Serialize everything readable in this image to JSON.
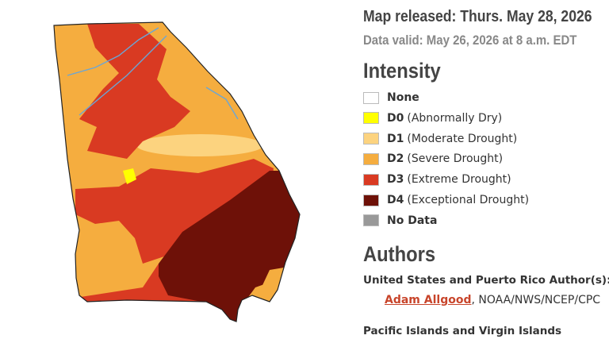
{
  "header": {
    "released": "Map released: Thurs. May 28, 2026",
    "valid": "Data valid: May 26, 2026 at 8 a.m. EDT"
  },
  "legend": {
    "title": "Intensity",
    "items": [
      {
        "code": "None",
        "color": "#ffffff"
      },
      {
        "code": "D0",
        "label": "(Abnormally Dry)",
        "color": "#ffff00"
      },
      {
        "code": "D1",
        "label": "(Moderate Drought)",
        "color": "#fcd37f"
      },
      {
        "code": "D2",
        "label": "(Severe Drought)",
        "color": "#f5ad3f"
      },
      {
        "code": "D3",
        "label": "(Extreme Drought)",
        "color": "#d93a22"
      },
      {
        "code": "D4",
        "label": "(Exceptional Drought)",
        "color": "#6e1108"
      },
      {
        "code": "No Data",
        "color": "#999999"
      }
    ]
  },
  "authors": {
    "title": "Authors",
    "groups": [
      {
        "title": "United States and Puerto Rico Author(s):",
        "author": "Adam Allgood",
        "affiliation": ", NOAA/NWS/NCEP/CPC"
      },
      {
        "title": "Pacific Islands and Virgin Islands"
      }
    ]
  }
}
